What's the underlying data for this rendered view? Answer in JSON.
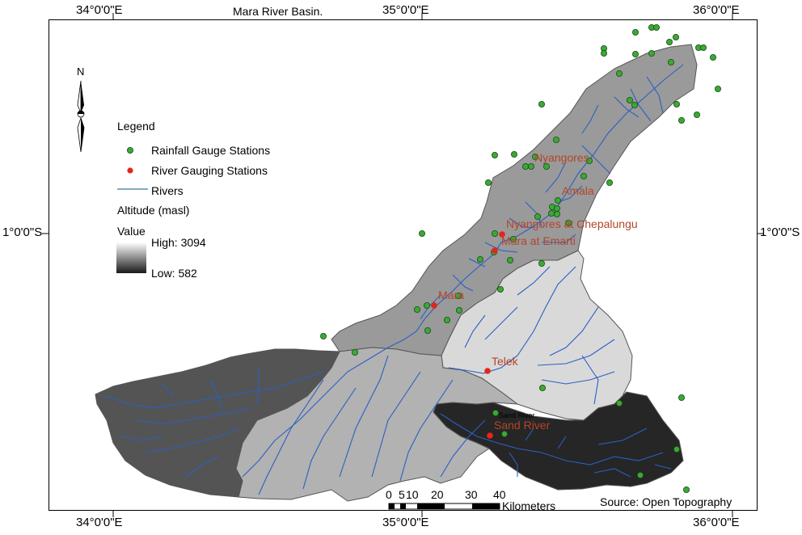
{
  "title": "Mara River Basin.",
  "axes": {
    "top": [
      "34°0'0\"E",
      "35°0'0\"E",
      "36°0'0\"E"
    ],
    "bottom": [
      "34°0'0\"E",
      "35°0'0\"E",
      "36°0'0\"E"
    ],
    "left": "1°0'0\"S",
    "right": "1°0'0\"S"
  },
  "north_arrow": {
    "label": "N",
    "icon": "north-arrow-icon"
  },
  "legend": {
    "title": "Legend",
    "rainfall": "Rainfall Gauge Stations",
    "river_gauging": "River Gauging Stations",
    "rivers": "Rivers",
    "altitude_title": "Altitude (masl)",
    "value_label": "Value",
    "high": "High: 3094",
    "low": "Low: 582"
  },
  "station_labels": {
    "nyangores": "Nyangores",
    "amala": "Amala",
    "chepalungu": "Nyangores at Chepalungu",
    "emarti": "Mara at Emarti",
    "mara": "Mara",
    "telek": "Telek",
    "sand_small": "Sand River",
    "sand": "Sand River"
  },
  "scale_bar": {
    "ticks": [
      "0",
      "5",
      "10",
      "20",
      "30",
      "40"
    ],
    "unit": "Kilometers"
  },
  "source": "Source: Open Topography",
  "colors": {
    "rain": "#3aaa35",
    "gauge": "#e3261b",
    "river": "#2a5fc4",
    "label": "#b5442a"
  }
}
